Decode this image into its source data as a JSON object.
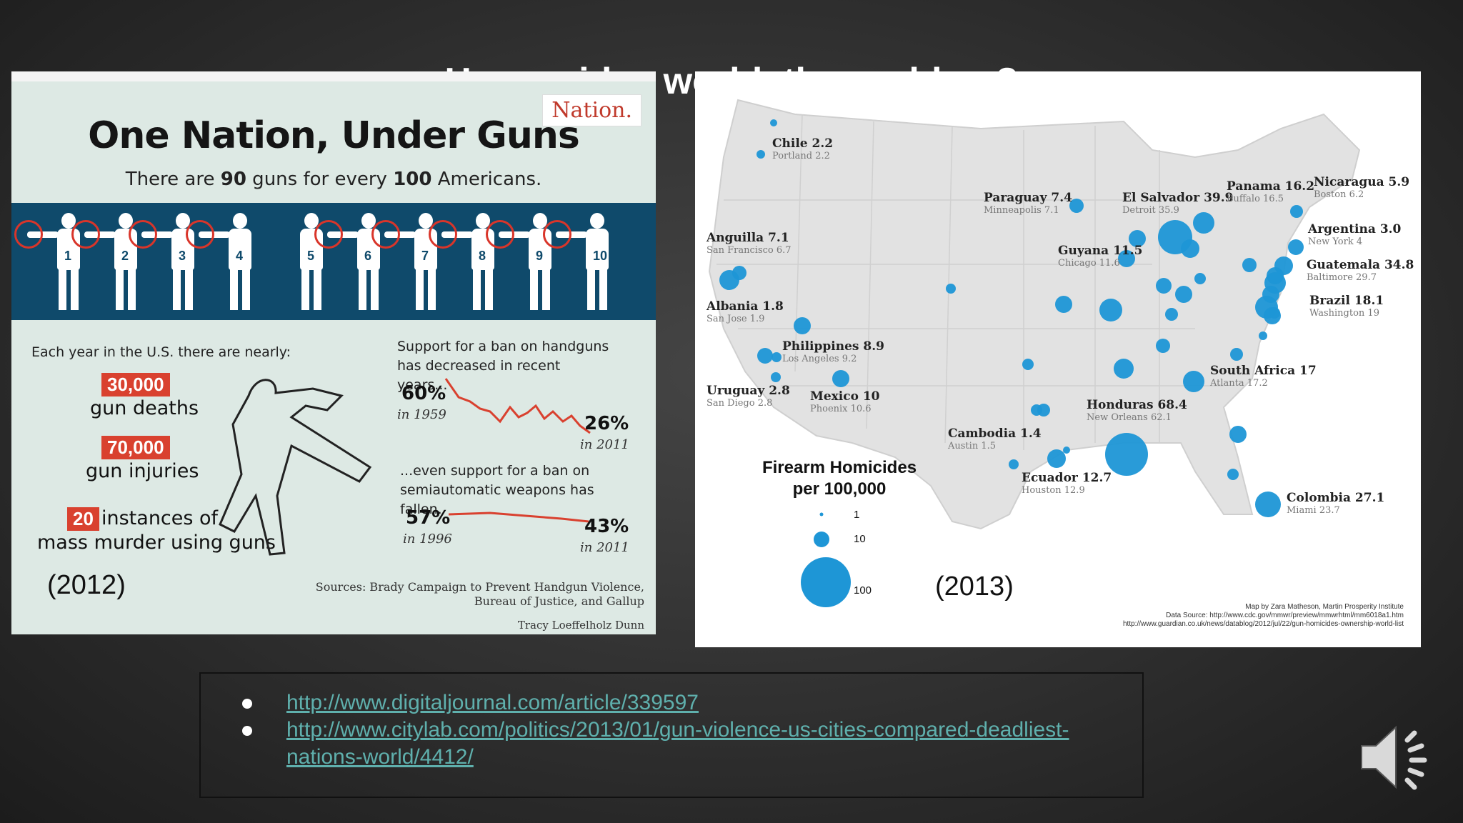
{
  "slide": {
    "title": "How guides world, the problem?"
  },
  "infographic": {
    "logo": "Nation.",
    "title": "One Nation, Under Guns",
    "subtitle_pre": "There are ",
    "subtitle_num1": "90",
    "subtitle_mid": " guns for every ",
    "subtitle_num2": "100",
    "subtitle_post": " Americans.",
    "figures": [
      "1",
      "2",
      "3",
      "4",
      "5",
      "6",
      "7",
      "8",
      "9",
      "10"
    ],
    "each_year": "Each year in the U.S. there are nearly:",
    "stats": [
      {
        "value": "30,000",
        "label": "gun deaths"
      },
      {
        "value": "70,000",
        "label": "gun injuries"
      },
      {
        "value": "20",
        "label": "instances of"
      }
    ],
    "mass_murder": "mass murder using guns",
    "handgun_support": "Support for a ban on handguns has decreased in recent years...",
    "handgun_start_pct": "60%",
    "handgun_start_year": "in 1959",
    "handgun_end_pct": "26%",
    "handgun_end_year": "in 2011",
    "semi_support": "...even support for a ban on semiautomatic weapons has fallen.",
    "semi_start_pct": "57%",
    "semi_start_year": "in 1996",
    "semi_end_pct": "43%",
    "semi_end_year": "in 2011",
    "sources_line1": "Sources: Brady Campaign to Prevent Handgun Violence,",
    "sources_line2": "Bureau of Justice, and Gallup",
    "credit": "Tracy Loeffelholz Dunn",
    "year_label": "(2012)",
    "accent_color": "#d9412f",
    "band_color": "#0f4a6b"
  },
  "map": {
    "labels": [
      {
        "country": "Chile 2.2",
        "city": "Portland 2.2"
      },
      {
        "country": "Paraguay 7.4",
        "city": "Minneapolis 7.1"
      },
      {
        "country": "El Salvador 39.9",
        "city": "Detroit  35.9"
      },
      {
        "country": "Panama 16.2",
        "city": "Buffalo 16.5"
      },
      {
        "country": "Nicaragua 5.9",
        "city": "Boston 6.2"
      },
      {
        "country": "Anguilla 7.1",
        "city": "San Francisco 6.7"
      },
      {
        "country": "Guyana 11.5",
        "city": "Chicago 11.6"
      },
      {
        "country": "Argentina 3.0",
        "city": "New York 4"
      },
      {
        "country": "Guatemala 34.8",
        "city": "Baltimore 29.7"
      },
      {
        "country": "Albania 1.8",
        "city": "San Jose 1.9"
      },
      {
        "country": "Brazil 18.1",
        "city": "Washington 19"
      },
      {
        "country": "Philippines 8.9",
        "city": "Los Angeles 9.2"
      },
      {
        "country": "Uruguay  2.8",
        "city": "San Diego 2.8"
      },
      {
        "country": "Mexico 10",
        "city": "Phoenix 10.6"
      },
      {
        "country": "South Africa 17",
        "city": "Atlanta 17.2"
      },
      {
        "country": "Honduras 68.4",
        "city": "New Orleans 62.1"
      },
      {
        "country": "Cambodia 1.4",
        "city": "Austin 1.5"
      },
      {
        "country": "Ecuador 12.7",
        "city": "Houston 12.9"
      },
      {
        "country": "Colombia 27.1",
        "city": "Miami 23.7"
      }
    ],
    "legend_title_line1": "Firearm Homicides",
    "legend_title_line2": "per 100,000",
    "legend_values": [
      "1",
      "10",
      "100"
    ],
    "credit_line1": "Map by Zara Matheson, Martin Prosperity Institute",
    "credit_line2": "Data Source: http://www.cdc.gov/mmwr/preview/mmwrhtml/mm6018a1.htm",
    "credit_line3": "http://www.guardian.co.uk/news/datablog/2012/jul/22/gun-homicides-ownership-world-list",
    "year_label": "(2013)",
    "bubble_color": "#1e96d6",
    "land_color": "#e2e2e2"
  },
  "links": {
    "items": [
      {
        "text": "http://www.digitaljournal.com/article/339597"
      },
      {
        "text": "http://www.citylab.com/politics/2013/01/gun-violence-us-cities-compared-deadliest-nations-world/4412/"
      }
    ],
    "link_color": "#5fb0ad"
  },
  "audio": {
    "icon": "speaker-icon"
  }
}
